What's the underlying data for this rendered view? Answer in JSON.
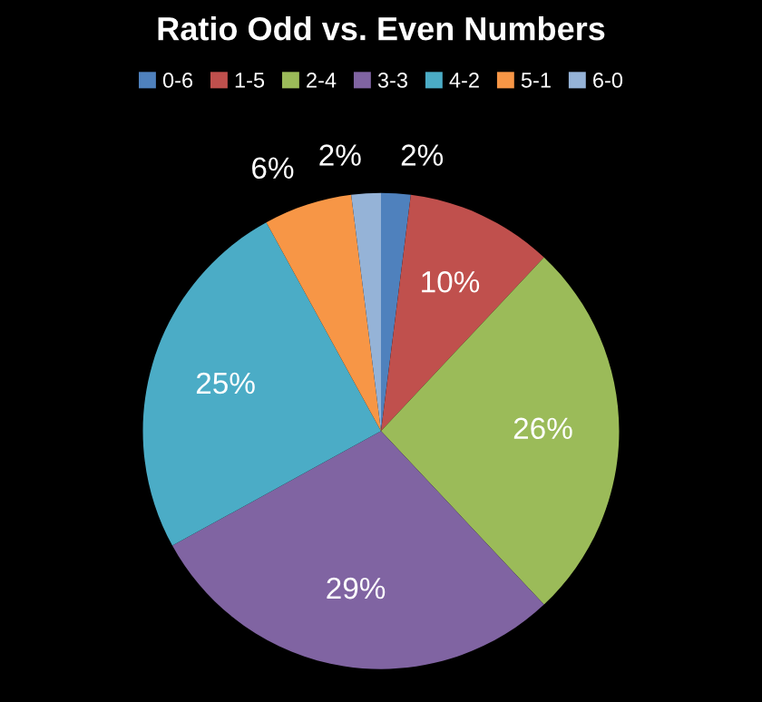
{
  "chart_data": {
    "type": "pie",
    "title": "Ratio Odd vs. Even Numbers",
    "categories": [
      "0-6",
      "1-5",
      "2-4",
      "3-3",
      "4-2",
      "5-1",
      "6-0"
    ],
    "values": [
      2,
      10,
      26,
      29,
      25,
      6,
      2
    ],
    "colors": [
      "#4f81bd",
      "#c0504d",
      "#9bbb59",
      "#8064a2",
      "#4bacc6",
      "#f79646",
      "#95b3d7"
    ],
    "value_labels": [
      "2%",
      "10%",
      "26%",
      "29%",
      "25%",
      "6%",
      "2%"
    ],
    "legend": "top"
  }
}
